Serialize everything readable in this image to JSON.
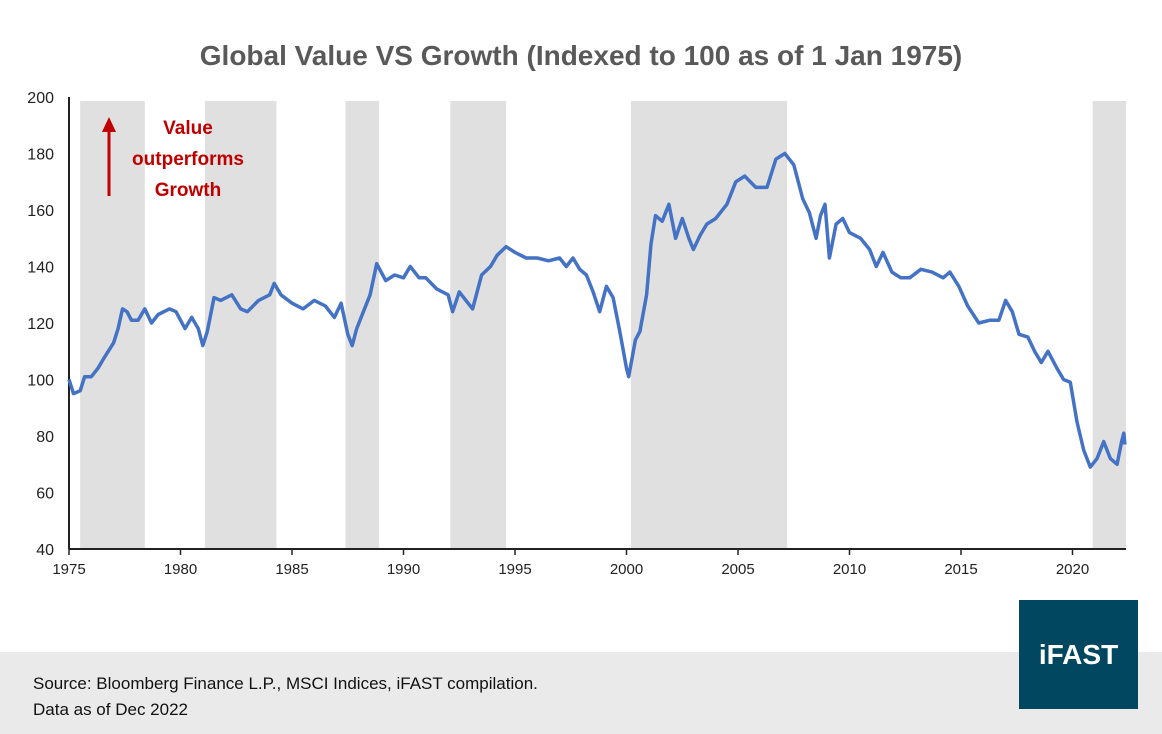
{
  "chart_data": {
    "type": "line",
    "title": "Global Value VS Growth (Indexed to 100 as of 1 Jan 1975)",
    "xlabel": "",
    "ylabel": "",
    "xlim": [
      1975,
      2022.4
    ],
    "ylim": [
      40,
      200
    ],
    "x_ticks": [
      "1975",
      "1980",
      "1985",
      "1990",
      "1995",
      "2000",
      "2005",
      "2010",
      "2015",
      "2020"
    ],
    "y_ticks": [
      "40",
      "60",
      "80",
      "100",
      "120",
      "140",
      "160",
      "180",
      "200"
    ],
    "grid": false,
    "line_color": "#4472C4",
    "shade_color": "#E0E0E0",
    "shaded_periods": [
      [
        1975.5,
        1978.4
      ],
      [
        1981.1,
        1984.3
      ],
      [
        1987.4,
        1988.9
      ],
      [
        1992.1,
        1994.6
      ],
      [
        2000.2,
        2007.2
      ],
      [
        2020.9,
        2022.4
      ]
    ],
    "annotation": {
      "lines": [
        "Value",
        "outperforms",
        "Growth"
      ],
      "color": "#C00000",
      "arrow": "up"
    },
    "series": [
      {
        "x": [
          1975.0,
          1975.2,
          1975.5,
          1975.7,
          1976.0,
          1976.3,
          1976.6,
          1977.0,
          1977.2,
          1977.4,
          1977.6,
          1977.8,
          1978.1,
          1978.4,
          1978.7,
          1979.0,
          1979.5,
          1979.8,
          1980.2,
          1980.5,
          1980.8,
          1981.0,
          1981.2,
          1981.5,
          1981.8,
          1982.3,
          1982.7,
          1983.0,
          1983.5,
          1984.0,
          1984.2,
          1984.5,
          1985.0,
          1985.5,
          1986.0,
          1986.5,
          1986.9,
          1987.2,
          1987.5,
          1987.7,
          1987.9,
          1988.2,
          1988.5,
          1988.8,
          1989.2,
          1989.6,
          1990.0,
          1990.3,
          1990.7,
          1991.0,
          1991.5,
          1992.0,
          1992.2,
          1992.5,
          1992.8,
          1993.1,
          1993.5,
          1993.9,
          1994.2,
          1994.6,
          1995.0,
          1995.5,
          1996.0,
          1996.5,
          1997.0,
          1997.3,
          1997.6,
          1997.9,
          1998.2,
          1998.5,
          1998.8,
          1999.1,
          1999.4,
          1999.7,
          2000.0,
          2000.1,
          2000.4,
          2000.6,
          2000.9,
          2001.1,
          2001.3,
          2001.6,
          2001.9,
          2002.2,
          2002.5,
          2002.8,
          2003.0,
          2003.3,
          2003.6,
          2004.0,
          2004.5,
          2004.9,
          2005.3,
          2005.8,
          2006.3,
          2006.7,
          2007.1,
          2007.5,
          2007.9,
          2008.2,
          2008.5,
          2008.7,
          2008.9,
          2009.1,
          2009.4,
          2009.7,
          2010.0,
          2010.5,
          2010.9,
          2011.2,
          2011.5,
          2011.9,
          2012.3,
          2012.7,
          2013.2,
          2013.7,
          2014.2,
          2014.5,
          2014.9,
          2015.3,
          2015.8,
          2016.3,
          2016.7,
          2017.0,
          2017.3,
          2017.6,
          2018.0,
          2018.3,
          2018.6,
          2018.9,
          2019.3,
          2019.6,
          2019.9,
          2020.2,
          2020.5,
          2020.8,
          2021.1,
          2021.4,
          2021.7,
          2022.0,
          2022.2,
          2022.3,
          2022.35
        ],
        "y": [
          100,
          95,
          96,
          101,
          101,
          104,
          108,
          113,
          118,
          125,
          124,
          121,
          121,
          125,
          120,
          123,
          125,
          124,
          118,
          122,
          118,
          112,
          117,
          129,
          128,
          130,
          125,
          124,
          128,
          130,
          134,
          130,
          127,
          125,
          128,
          126,
          122,
          127,
          116,
          112,
          118,
          124,
          130,
          141,
          135,
          137,
          136,
          140,
          136,
          136,
          132,
          130,
          124,
          131,
          128,
          125,
          137,
          140,
          144,
          147,
          145,
          143,
          143,
          142,
          143,
          140,
          143,
          139,
          137,
          131,
          124,
          133,
          129,
          117,
          104,
          101,
          114,
          117,
          130,
          148,
          158,
          156,
          162,
          150,
          157,
          150,
          146,
          151,
          155,
          157,
          162,
          170,
          172,
          168,
          168,
          178,
          180,
          176,
          164,
          159,
          150,
          158,
          162,
          143,
          155,
          157,
          152,
          150,
          146,
          140,
          145,
          138,
          136,
          136,
          139,
          138,
          136,
          138,
          133,
          126,
          120,
          121,
          121,
          128,
          124,
          116,
          115,
          110,
          106,
          110,
          104,
          100,
          99,
          85,
          75,
          69,
          72,
          78,
          72,
          70,
          78,
          81,
          77
        ]
      }
    ]
  },
  "footer": {
    "source": "Source: Bloomberg Finance L.P., MSCI Indices, iFAST compilation.",
    "date": "Data as of Dec 2022"
  },
  "logo": {
    "text": "iFAST",
    "color": "#00475F"
  }
}
